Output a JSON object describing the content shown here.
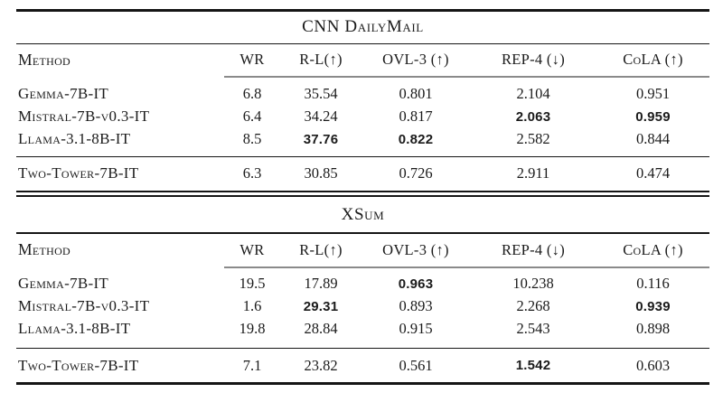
{
  "table": {
    "columns": [
      "Method",
      "WR",
      "R-L(↑)",
      "OVL-3 (↑)",
      "REP-4 (↓)",
      "CoLA (↑)"
    ],
    "sections": [
      {
        "title": "CNN DailyMail",
        "rows": [
          [
            "Gemma-7B-IT",
            "6.8",
            "35.54",
            "0.801",
            "2.104",
            "0.951"
          ],
          [
            "Mistral-7B-v0.3-IT",
            "6.4",
            "34.24",
            "0.817",
            "2.063",
            "0.959"
          ],
          [
            "Llama-3.1-8B-IT",
            "8.5",
            "37.76",
            "0.822",
            "2.582",
            "0.844"
          ]
        ],
        "footer_rows": [
          [
            "Two-Tower-7B-IT",
            "6.3",
            "30.85",
            "0.726",
            "2.911",
            "0.474"
          ]
        ],
        "bold_cells": [
          [
            1,
            4
          ],
          [
            1,
            5
          ],
          [
            2,
            2
          ],
          [
            2,
            3
          ]
        ]
      },
      {
        "title": "XSum",
        "rows": [
          [
            "Gemma-7B-IT",
            "19.5",
            "17.89",
            "0.963",
            "10.238",
            "0.116"
          ],
          [
            "Mistral-7B-v0.3-IT",
            "1.6",
            "29.31",
            "0.893",
            "2.268",
            "0.939"
          ],
          [
            "Llama-3.1-8B-IT",
            "19.8",
            "28.84",
            "0.915",
            "2.543",
            "0.898"
          ]
        ],
        "footer_rows": [
          [
            "Two-Tower-7B-IT",
            "7.1",
            "23.82",
            "0.561",
            "1.542",
            "0.603"
          ]
        ],
        "footer_bold_cells": [
          [
            0,
            4
          ]
        ]
      }
    ]
  },
  "colors": {
    "background": "#ffffff",
    "text": "#1b1b1b",
    "rule": "#151515",
    "partial_rule_gray": "#8a8a8a"
  }
}
